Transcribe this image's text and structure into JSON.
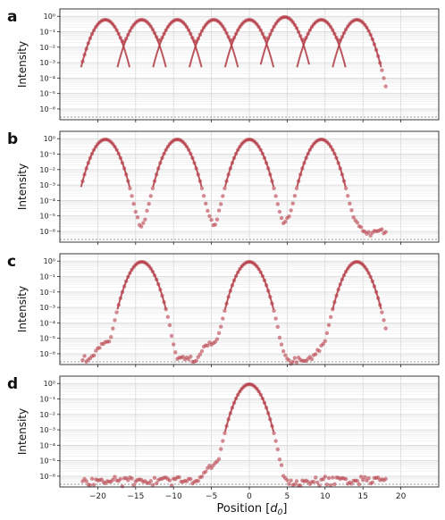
{
  "figure": {
    "xlabel_text": "Position [",
    "xlabel_var": "d",
    "xlabel_sub": "0",
    "xlabel_close": "]",
    "x_ticks": [
      -20,
      -15,
      -10,
      -5,
      0,
      5,
      10,
      15,
      20
    ],
    "colors": {
      "data": "#b8404a",
      "fit": "#b03a44",
      "grid_major": "#d6d6d6",
      "grid_minor": "#ececec",
      "baseline": "#9a9a9a"
    }
  },
  "chart_data": [
    {
      "type": "scatter",
      "panel_label": "a",
      "ylabel": "Intensity",
      "yscale": "log",
      "xlim": [
        -25,
        25
      ],
      "ylim": [
        2e-07,
        3
      ],
      "y_ticks": [
        "10⁰",
        "10⁻¹",
        "10⁻²",
        "10⁻³",
        "10⁻⁴",
        "10⁻⁵",
        "10⁻⁶"
      ],
      "peaks": [
        -19,
        -14.2,
        -9.5,
        -4.7,
        0,
        4.7,
        9.5,
        14.2
      ],
      "peak_values": [
        0.6,
        0.6,
        0.6,
        0.6,
        0.6,
        0.9,
        0.6,
        0.6
      ],
      "peak_sigma": 0.85,
      "data_x_range": [
        -22,
        18
      ],
      "noise_floor": 1e-06,
      "baseline_y": 3e-07,
      "grid": true
    },
    {
      "type": "scatter",
      "panel_label": "b",
      "ylabel": "Intensity",
      "yscale": "log",
      "xlim": [
        -25,
        25
      ],
      "ylim": [
        2e-07,
        3
      ],
      "y_ticks": [
        "10⁰",
        "10⁻¹",
        "10⁻²",
        "10⁻³",
        "10⁻⁴",
        "10⁻⁵",
        "10⁻⁶"
      ],
      "peaks": [
        -19,
        -9.5,
        0,
        9.5
      ],
      "peak_values": [
        0.9,
        0.9,
        0.9,
        0.9
      ],
      "peak_sigma": 0.85,
      "side_lobes": [
        [
          -16,
          1e-05
        ],
        [
          -12.5,
          1e-05
        ],
        [
          -6.2,
          1e-05
        ],
        [
          -3.2,
          5e-06
        ],
        [
          3.2,
          5e-06
        ],
        [
          6,
          1e-05
        ],
        [
          13,
          1e-05
        ]
      ],
      "data_x_range": [
        -22,
        18
      ],
      "noise_floor": 1e-06,
      "baseline_y": 3e-07,
      "grid": true
    },
    {
      "type": "scatter",
      "panel_label": "c",
      "ylabel": "Intensity",
      "yscale": "log",
      "xlim": [
        -25,
        25
      ],
      "ylim": [
        2e-07,
        3
      ],
      "y_ticks": [
        "10⁰",
        "10⁻¹",
        "10⁻²",
        "10⁻³",
        "10⁻⁴",
        "10⁻⁵",
        "10⁻⁶"
      ],
      "peaks": [
        -14.2,
        0,
        14.2
      ],
      "peak_values": [
        0.9,
        0.9,
        0.9
      ],
      "peak_sigma": 0.85,
      "side_lobes": [
        [
          -19,
          5e-06
        ],
        [
          -11.5,
          5e-06
        ],
        [
          -5,
          5e-06
        ],
        [
          -3,
          3e-06
        ],
        [
          3,
          3e-06
        ],
        [
          10,
          3e-06
        ],
        [
          17.5,
          3e-06
        ]
      ],
      "data_x_range": [
        -22,
        18
      ],
      "noise_floor": 4e-07,
      "baseline_y": 3e-07,
      "grid": true
    },
    {
      "type": "scatter",
      "panel_label": "d",
      "ylabel": "Intensity",
      "yscale": "log",
      "xlim": [
        -25,
        25
      ],
      "ylim": [
        2e-07,
        3
      ],
      "y_ticks": [
        "10⁰",
        "10⁻¹",
        "10⁻²",
        "10⁻³",
        "10⁻⁴",
        "10⁻⁵",
        "10⁻⁶"
      ],
      "peaks": [
        0
      ],
      "peak_values": [
        0.9
      ],
      "peak_sigma": 0.85,
      "side_lobes": [
        [
          -4.8,
          4e-06
        ],
        [
          -3.6,
          1.5e-06
        ],
        [
          2.2,
          1e-06
        ]
      ],
      "data_x_range": [
        -22,
        18
      ],
      "noise_floor": 5e-07,
      "baseline_y": 3e-07,
      "grid": true
    }
  ]
}
